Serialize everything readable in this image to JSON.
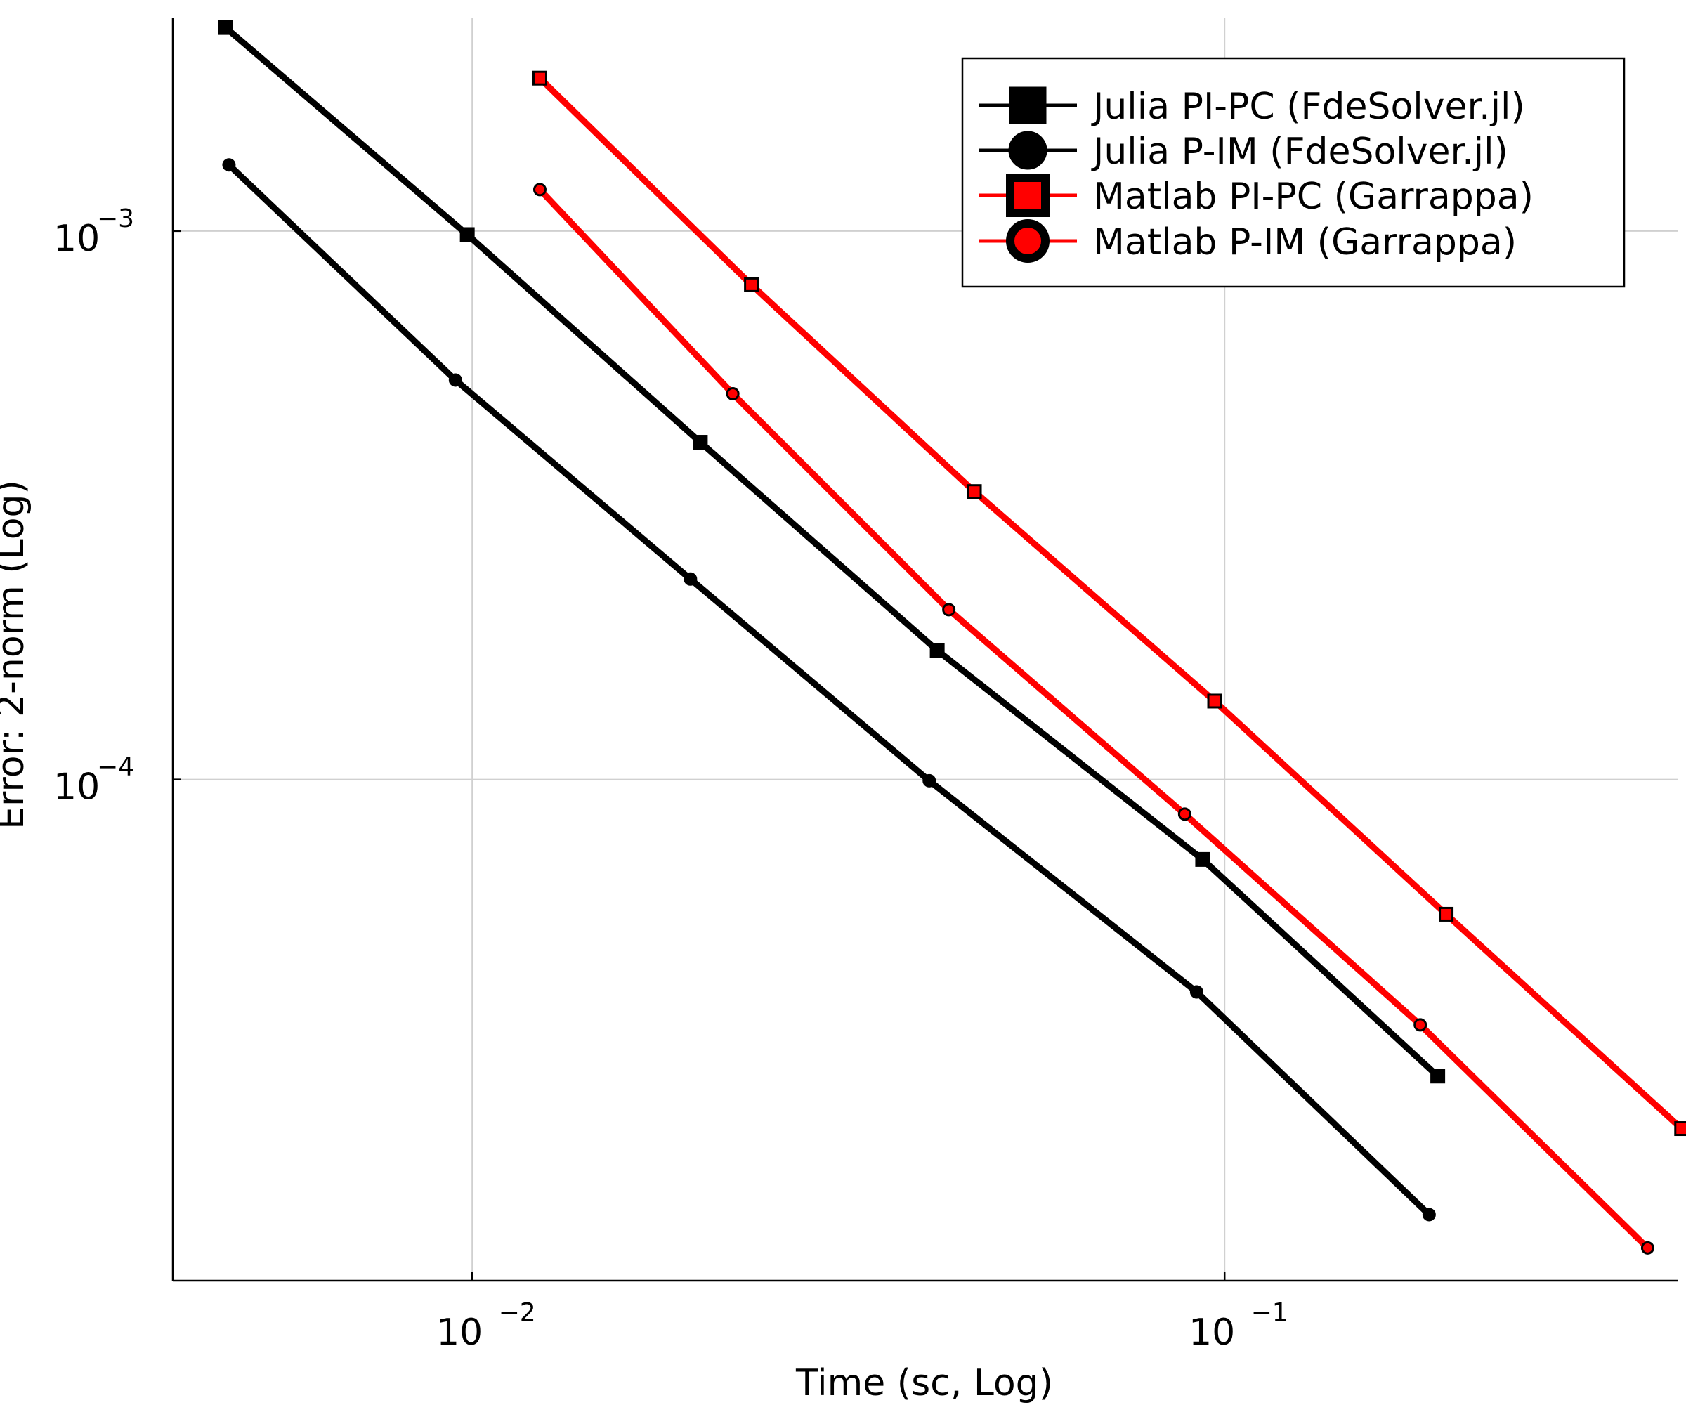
{
  "chart_data": {
    "type": "line",
    "xlabel": "Time (sc, Log)",
    "ylabel": "Error: 2-norm (Log)",
    "xscale": "log",
    "yscale": "log",
    "xlim": [
      0.004,
      0.4
    ],
    "ylim": [
      1.22e-05,
      0.00245
    ],
    "grid": true,
    "legend_position": "top-right",
    "x_ticks": [
      {
        "value": 0.01,
        "base": "10",
        "exp": "−2"
      },
      {
        "value": 0.1,
        "base": "10",
        "exp": "−1"
      }
    ],
    "y_ticks": [
      {
        "value": 0.001,
        "base": "10",
        "exp": "−3"
      },
      {
        "value": 0.0001,
        "base": "10",
        "exp": "−4"
      }
    ],
    "series": [
      {
        "name": "Julia PI-PC (FdeSolver.jl)",
        "color": "#000000",
        "marker": "square",
        "points": [
          [
            0.0047,
            0.00235
          ],
          [
            0.00985,
            0.000985
          ],
          [
            0.0201,
            0.000412
          ],
          [
            0.0415,
            0.000172
          ],
          [
            0.0935,
            7.15e-05
          ],
          [
            0.192,
            2.88e-05
          ]
        ]
      },
      {
        "name": "Julia P-IM (FdeSolver.jl)",
        "color": "#000000",
        "marker": "circle",
        "points": [
          [
            0.00475,
            0.00132
          ],
          [
            0.0095,
            0.000535
          ],
          [
            0.0195,
            0.000232
          ],
          [
            0.0405,
            9.95e-05
          ],
          [
            0.0918,
            4.1e-05
          ],
          [
            0.187,
            1.61e-05
          ]
        ]
      },
      {
        "name": "Matlab PI-PC (Garrappa)",
        "color": "#ff0000",
        "marker": "square",
        "points": [
          [
            0.0123,
            0.0019
          ],
          [
            0.0235,
            0.000798
          ],
          [
            0.0465,
            0.000335
          ],
          [
            0.097,
            0.000139
          ],
          [
            0.197,
            5.68e-05
          ],
          [
            0.405,
            2.31e-05
          ]
        ]
      },
      {
        "name": "Matlab P-IM (Garrappa)",
        "color": "#ff0000",
        "marker": "circle",
        "points": [
          [
            0.0123,
            0.00119
          ],
          [
            0.0222,
            0.000505
          ],
          [
            0.043,
            0.000204
          ],
          [
            0.0885,
            8.65e-05
          ],
          [
            0.182,
            3.57e-05
          ],
          [
            0.365,
            1.4e-05
          ]
        ]
      }
    ]
  }
}
